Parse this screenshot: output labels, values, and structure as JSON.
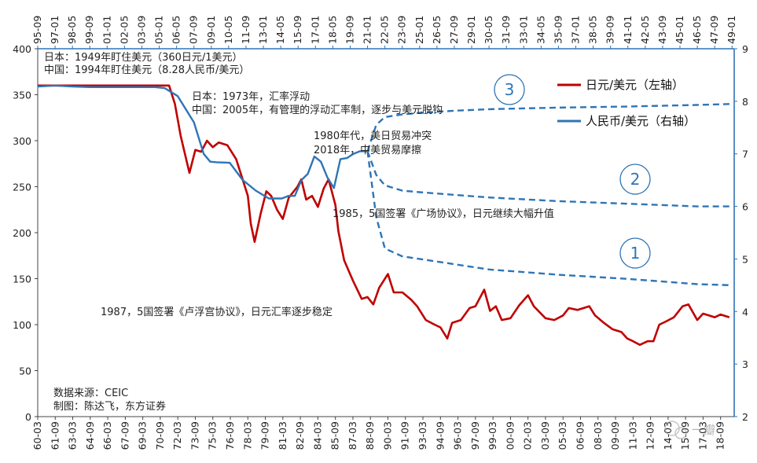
{
  "chart_data": {
    "type": "line",
    "xaxis_bottom": {
      "tick_labels": [
        "60-03",
        "61-09",
        "63-03",
        "64-09",
        "66-03",
        "67-09",
        "69-03",
        "70-09",
        "72-03",
        "73-09",
        "75-03",
        "76-09",
        "78-03",
        "79-09",
        "81-03",
        "82-09",
        "84-03",
        "85-09",
        "87-03",
        "88-09",
        "90-03",
        "91-09",
        "93-03",
        "94-09",
        "96-03",
        "97-09",
        "99-03",
        "00-09",
        "02-03",
        "03-09",
        "05-03",
        "06-09",
        "08-03",
        "09-09",
        "11-03",
        "12-09",
        "14-03",
        "15-09",
        "17-03",
        "18-09"
      ]
    },
    "xaxis_top": {
      "tick_labels": [
        "95-09",
        "97-01",
        "98-05",
        "99-09",
        "01-01",
        "02-05",
        "03-09",
        "05-01",
        "06-05",
        "07-09",
        "09-01",
        "10-05",
        "11-09",
        "13-01",
        "14-05",
        "15-09",
        "17-01",
        "18-05",
        "19-09",
        "21-01",
        "22-05",
        "23-09",
        "25-01",
        "26-05",
        "27-09",
        "29-01",
        "30-05",
        "31-09",
        "33-01",
        "34-05",
        "35-09",
        "37-01",
        "38-05",
        "39-09",
        "41-01",
        "42-05",
        "43-09",
        "45-01",
        "46-05",
        "47-09",
        "49-01"
      ]
    },
    "yaxis_left": {
      "ylim": [
        0,
        400
      ],
      "ticks": [
        "0",
        "50",
        "100",
        "150",
        "200",
        "250",
        "300",
        "350",
        "400"
      ]
    },
    "yaxis_right": {
      "ylim": [
        2,
        9
      ],
      "ticks": [
        "2",
        "3",
        "4",
        "5",
        "6",
        "7",
        "8",
        "9"
      ]
    },
    "series": [
      {
        "name": "日元/美元（左轴）",
        "axis": "left",
        "color": "#c00000",
        "x": [
          "60-03",
          "71-06",
          "71-12",
          "72-06",
          "73-03",
          "73-09",
          "74-03",
          "74-09",
          "75-03",
          "75-09",
          "76-06",
          "77-03",
          "77-09",
          "78-03",
          "78-06",
          "78-10",
          "79-04",
          "79-10",
          "80-03",
          "80-09",
          "81-03",
          "81-09",
          "82-06",
          "82-10",
          "83-03",
          "83-09",
          "84-03",
          "84-09",
          "85-02",
          "85-09",
          "85-12",
          "86-06",
          "87-03",
          "87-12",
          "88-06",
          "88-12",
          "89-06",
          "90-03",
          "90-09",
          "91-06",
          "92-03",
          "92-09",
          "93-06",
          "94-03",
          "94-09",
          "95-04",
          "95-09",
          "96-06",
          "97-03",
          "97-09",
          "98-06",
          "98-12",
          "99-06",
          "99-12",
          "00-09",
          "01-06",
          "02-03",
          "02-09",
          "03-09",
          "04-06",
          "05-03",
          "05-09",
          "06-06",
          "07-06",
          "07-12",
          "08-09",
          "09-06",
          "10-03",
          "10-09",
          "11-03",
          "11-10",
          "12-06",
          "12-12",
          "13-06",
          "13-12",
          "14-09",
          "15-06",
          "15-12",
          "16-09",
          "17-03",
          "17-09",
          "18-03",
          "18-09",
          "19-06"
        ],
        "values": [
          360,
          360,
          340,
          305,
          265,
          290,
          288,
          300,
          293,
          298,
          295,
          280,
          260,
          240,
          210,
          190,
          220,
          245,
          240,
          225,
          215,
          238,
          250,
          258,
          236,
          240,
          228,
          248,
          258,
          230,
          202,
          170,
          148,
          128,
          130,
          122,
          140,
          155,
          135,
          135,
          127,
          120,
          105,
          100,
          97,
          85,
          102,
          105,
          118,
          120,
          138,
          115,
          120,
          105,
          107,
          121,
          132,
          120,
          107,
          105,
          110,
          118,
          116,
          120,
          110,
          102,
          95,
          92,
          85,
          82,
          78,
          82,
          82,
          100,
          103,
          108,
          120,
          122,
          105,
          112,
          110,
          108,
          111,
          108
        ]
      },
      {
        "name": "人民币/美元（右轴）",
        "axis": "right",
        "color": "#2e75b6",
        "x": [
          "95-09",
          "97-01",
          "98-05",
          "99-09",
          "01-01",
          "02-05",
          "03-09",
          "04-09",
          "05-06",
          "06-06",
          "07-09",
          "08-06",
          "08-12",
          "09-06",
          "10-06",
          "11-06",
          "12-06",
          "13-06",
          "14-06",
          "14-12",
          "15-06",
          "15-12",
          "16-06",
          "16-12",
          "17-06",
          "17-12",
          "18-06",
          "18-12",
          "19-06",
          "19-12",
          "20-06",
          "21-01"
        ],
        "values": [
          8.28,
          8.3,
          8.28,
          8.27,
          8.27,
          8.27,
          8.27,
          8.27,
          8.25,
          8.1,
          7.6,
          7.0,
          6.85,
          6.84,
          6.83,
          6.5,
          6.3,
          6.15,
          6.15,
          6.2,
          6.2,
          6.5,
          6.62,
          6.95,
          6.85,
          6.55,
          6.35,
          6.9,
          6.92,
          7.0,
          7.05,
          7.05
        ]
      }
    ],
    "projections": [
      {
        "label": "1",
        "axis": "right",
        "x": [
          "21-01",
          "21-09",
          "22-05",
          "23-09",
          "25-01",
          "27-09",
          "30-05",
          "35-09",
          "41-01",
          "46-05",
          "49-01"
        ],
        "values": [
          7.05,
          5.8,
          5.2,
          5.05,
          5.0,
          4.9,
          4.8,
          4.7,
          4.62,
          4.52,
          4.5
        ]
      },
      {
        "label": "2",
        "axis": "right",
        "x": [
          "21-01",
          "21-09",
          "22-05",
          "23-09",
          "25-01",
          "27-09",
          "30-05",
          "35-09",
          "41-01",
          "46-05",
          "49-01"
        ],
        "values": [
          7.05,
          6.6,
          6.4,
          6.3,
          6.27,
          6.22,
          6.17,
          6.1,
          6.05,
          6.0,
          6.0
        ]
      },
      {
        "label": "3",
        "axis": "right",
        "x": [
          "21-01",
          "21-09",
          "22-05",
          "23-09",
          "25-01",
          "27-09",
          "30-05",
          "35-09",
          "41-01",
          "46-05",
          "49-01"
        ],
        "values": [
          7.05,
          7.55,
          7.7,
          7.75,
          7.78,
          7.82,
          7.85,
          7.88,
          7.9,
          7.93,
          7.95
        ]
      }
    ],
    "annotations": [
      "日本：1949年盯住美元（360日元/1美元）",
      "中国：1994年盯住美元（8.28人民币/美元）",
      "日本：1973年，汇率浮动",
      "中国：2005年，有管理的浮动汇率制，逐步与美元脱钩",
      "1980年代，美日贸易冲突",
      "2018年，中美贸易摩擦",
      "1985，5国签署《广场协议》，日元继续大幅升值",
      "1987，5国签署《卢浮宫协议》，日元汇率逐步稳定",
      "数据来源：CEIC",
      "制图：陈达飞，东方证券"
    ],
    "legend_position": "top-right",
    "watermark": "一瓣"
  }
}
